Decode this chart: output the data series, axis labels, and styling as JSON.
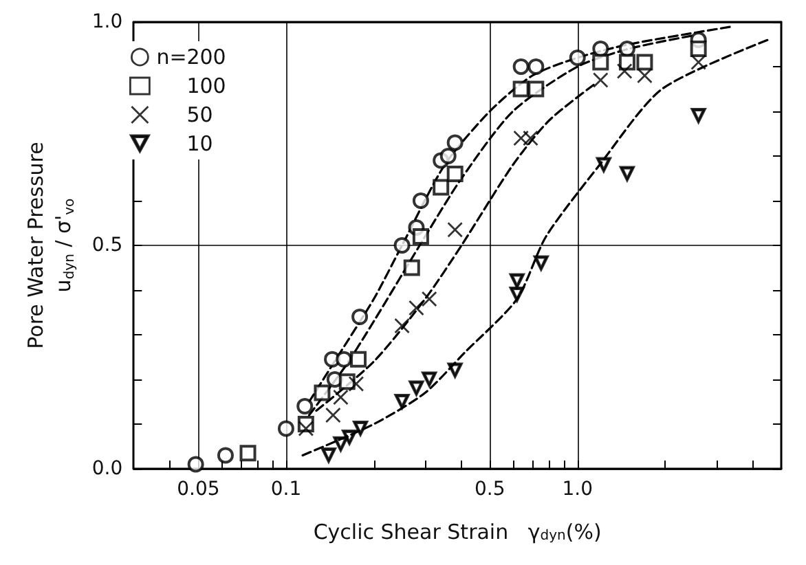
{
  "chart_data": {
    "type": "scatter",
    "xlabel": "Cyclic Shear Strain   γ$_{dyn}$(%)",
    "ylabel": "Pore Water Pressure\nu$_{dyn}$ / σ'$_{vo}$",
    "legend_title": "n=",
    "legend": "top left",
    "log": "x",
    "grid": true,
    "xlim": [
      0.03,
      5
    ],
    "ylim": [
      0,
      1.0
    ],
    "xticks": [
      {
        "value": 0.04,
        "label": null
      },
      {
        "value": 0.05,
        "label": "0.05"
      },
      {
        "value": 0.06,
        "label": null
      },
      {
        "value": 0.07,
        "label": null
      },
      {
        "value": 0.08,
        "label": null
      },
      {
        "value": 0.09,
        "label": null
      },
      {
        "value": 0.1,
        "label": "0.1"
      },
      {
        "value": 0.2,
        "label": null
      },
      {
        "value": 0.3,
        "label": null
      },
      {
        "value": 0.4,
        "label": null
      },
      {
        "value": 0.5,
        "label": "0.5"
      },
      {
        "value": 0.6,
        "label": null
      },
      {
        "value": 0.7,
        "label": null
      },
      {
        "value": 0.8,
        "label": null
      },
      {
        "value": 0.9,
        "label": null
      },
      {
        "value": 1.0,
        "label": "1.0"
      },
      {
        "value": 2,
        "label": null
      },
      {
        "value": 3,
        "label": null
      },
      {
        "value": 4,
        "label": null
      }
    ],
    "yticks": [
      {
        "value": 0,
        "label": "0.0"
      },
      {
        "value": 0.1,
        "label": null
      },
      {
        "value": 0.2,
        "label": null
      },
      {
        "value": 0.3,
        "label": null
      },
      {
        "value": 0.4,
        "label": null
      },
      {
        "value": 0.5,
        "label": "0.5"
      },
      {
        "value": 0.6,
        "label": null
      },
      {
        "value": 0.7,
        "label": null
      },
      {
        "value": 0.8,
        "label": null
      },
      {
        "value": 0.9,
        "label": null
      },
      {
        "value": 1.0,
        "label": "1.0"
      }
    ],
    "series": [
      {
        "name": "200",
        "color": "#000000",
        "marker": "circle",
        "x": [
          0.049,
          0.062,
          0.1,
          0.116,
          0.147,
          0.144,
          0.158,
          0.179,
          0.25,
          0.28,
          0.29,
          0.34,
          0.36,
          0.38,
          0.64,
          0.72,
          1.0,
          1.2,
          1.48,
          2.6
        ],
        "values": [
          0.01,
          0.03,
          0.09,
          0.14,
          0.2,
          0.245,
          0.245,
          0.34,
          0.5,
          0.54,
          0.6,
          0.69,
          0.7,
          0.73,
          0.9,
          0.9,
          0.92,
          0.94,
          0.94,
          0.96
        ]
      },
      {
        "name": "100",
        "color": "#000000",
        "marker": "square",
        "x": [
          0.074,
          0.117,
          0.133,
          0.162,
          0.177,
          0.27,
          0.29,
          0.34,
          0.38,
          0.64,
          0.72,
          1.2,
          1.48,
          1.7,
          2.6
        ],
        "values": [
          0.035,
          0.1,
          0.17,
          0.195,
          0.245,
          0.45,
          0.52,
          0.63,
          0.66,
          0.85,
          0.85,
          0.91,
          0.91,
          0.91,
          0.94
        ]
      },
      {
        "name": "50",
        "color": "#000000",
        "marker": "cross",
        "x": [
          0.117,
          0.145,
          0.154,
          0.174,
          0.25,
          0.28,
          0.31,
          0.38,
          0.64,
          0.69,
          1.2,
          1.45,
          1.7,
          2.6
        ],
        "values": [
          0.09,
          0.12,
          0.16,
          0.19,
          0.32,
          0.36,
          0.38,
          0.535,
          0.74,
          0.74,
          0.87,
          0.89,
          0.88,
          0.91
        ]
      },
      {
        "name": "10",
        "color": "#000000",
        "marker": "triangle",
        "x": [
          0.14,
          0.154,
          0.165,
          0.18,
          0.25,
          0.28,
          0.31,
          0.38,
          0.62,
          0.62,
          0.75,
          1.23,
          1.48,
          2.6
        ],
        "values": [
          0.03,
          0.055,
          0.07,
          0.09,
          0.15,
          0.18,
          0.2,
          0.22,
          0.39,
          0.42,
          0.46,
          0.68,
          0.66,
          0.79
        ]
      },
      {
        "type": "line",
        "color": "#000000",
        "marker": "none",
        "line_style": "dashed",
        "x": [
          0.12,
          0.15,
          0.2,
          0.25,
          0.35,
          0.5,
          0.7,
          1.0,
          1.5,
          3.4
        ],
        "values": [
          0.15,
          0.25,
          0.38,
          0.5,
          0.68,
          0.8,
          0.88,
          0.92,
          0.95,
          0.99
        ]
      },
      {
        "type": "line",
        "color": "#000000",
        "marker": "none",
        "line_style": "dashed",
        "x": [
          0.12,
          0.16,
          0.2,
          0.3,
          0.4,
          0.6,
          1.0,
          1.5,
          2.5
        ],
        "values": [
          0.12,
          0.23,
          0.33,
          0.52,
          0.65,
          0.8,
          0.9,
          0.94,
          0.97
        ]
      },
      {
        "type": "line",
        "color": "#000000",
        "marker": "none",
        "line_style": "dashed",
        "x": [
          0.127,
          0.2,
          0.3,
          0.4,
          0.6,
          0.8,
          1.14
        ],
        "values": [
          0.13,
          0.24,
          0.38,
          0.5,
          0.68,
          0.78,
          0.86
        ]
      },
      {
        "type": "line",
        "color": "#000000",
        "marker": "none",
        "line_style": "dashed",
        "x": [
          0.114,
          0.2,
          0.3,
          0.41,
          0.62,
          0.78,
          1.19,
          1.95,
          4.5
        ],
        "values": [
          0.03,
          0.1,
          0.17,
          0.26,
          0.38,
          0.52,
          0.68,
          0.85,
          0.96
        ]
      }
    ]
  }
}
